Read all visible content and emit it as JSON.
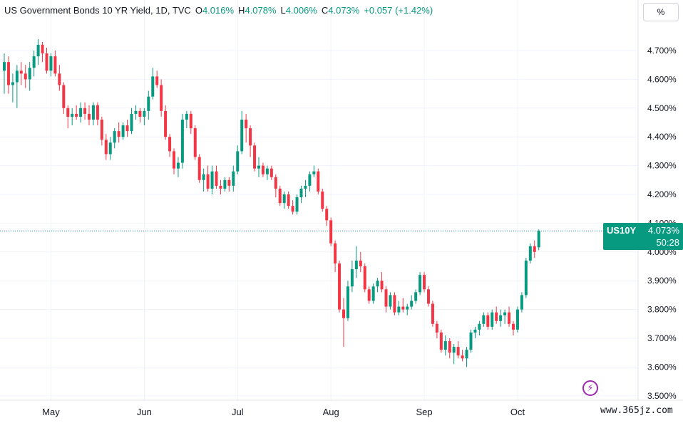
{
  "legend": {
    "title": "US Government Bonds 10 YR Yield, 1D, TVC",
    "open_label": "O",
    "open": "4.016%",
    "high_label": "H",
    "high": "4.078%",
    "low_label": "L",
    "low": "4.006%",
    "close_label": "C",
    "close": "4.073%",
    "change": "+0.057 (+1.42%)"
  },
  "scale_button": "%",
  "price_tag": {
    "symbol": "US10Y",
    "price": "4.073%",
    "countdown": "50:28",
    "value": 4.073
  },
  "watermark": "www.365jz.com",
  "colors": {
    "up": "#089981",
    "down": "#f23645",
    "grid": "#f0f3fa",
    "text": "#131722"
  },
  "icons": {
    "bolt": "lightning-bolt-icon"
  },
  "chart_data": {
    "type": "candlestick",
    "ylim": [
      3.5,
      4.75
    ],
    "y_ticks": [
      "4.700%",
      "4.600%",
      "4.500%",
      "4.400%",
      "4.300%",
      "4.200%",
      "4.100%",
      "4.000%",
      "3.900%",
      "3.800%",
      "3.700%",
      "3.600%",
      "3.500%"
    ],
    "y_tick_values": [
      4.7,
      4.6,
      4.5,
      4.4,
      4.3,
      4.2,
      4.1,
      4.0,
      3.9,
      3.8,
      3.7,
      3.6,
      3.5
    ],
    "x_labels": [
      "May",
      "Jun",
      "Jul",
      "Aug",
      "Sep",
      "Oct"
    ],
    "x_label_index": [
      11,
      33,
      55,
      77,
      99,
      121
    ],
    "grid": true,
    "candles": [
      [
        4.63,
        4.69,
        4.55,
        4.66
      ],
      [
        4.66,
        4.68,
        4.55,
        4.58
      ],
      [
        4.58,
        4.62,
        4.52,
        4.59
      ],
      [
        4.59,
        4.65,
        4.5,
        4.63
      ],
      [
        4.63,
        4.66,
        4.58,
        4.62
      ],
      [
        4.62,
        4.65,
        4.57,
        4.6
      ],
      [
        4.6,
        4.66,
        4.56,
        4.64
      ],
      [
        4.64,
        4.7,
        4.61,
        4.68
      ],
      [
        4.68,
        4.74,
        4.65,
        4.72
      ],
      [
        4.72,
        4.73,
        4.66,
        4.69
      ],
      [
        4.69,
        4.71,
        4.62,
        4.63
      ],
      [
        4.63,
        4.69,
        4.61,
        4.68
      ],
      [
        4.68,
        4.7,
        4.61,
        4.62
      ],
      [
        4.62,
        4.65,
        4.56,
        4.58
      ],
      [
        4.58,
        4.59,
        4.48,
        4.5
      ],
      [
        4.5,
        4.51,
        4.43,
        4.47
      ],
      [
        4.47,
        4.5,
        4.44,
        4.48
      ],
      [
        4.48,
        4.51,
        4.46,
        4.47
      ],
      [
        4.47,
        4.52,
        4.45,
        4.5
      ],
      [
        4.5,
        4.52,
        4.46,
        4.48
      ],
      [
        4.48,
        4.51,
        4.44,
        4.46
      ],
      [
        4.46,
        4.52,
        4.44,
        4.51
      ],
      [
        4.51,
        4.52,
        4.44,
        4.46
      ],
      [
        4.46,
        4.47,
        4.37,
        4.39
      ],
      [
        4.39,
        4.41,
        4.32,
        4.34
      ],
      [
        4.34,
        4.4,
        4.32,
        4.38
      ],
      [
        4.38,
        4.43,
        4.36,
        4.42
      ],
      [
        4.42,
        4.45,
        4.38,
        4.4
      ],
      [
        4.4,
        4.45,
        4.39,
        4.44
      ],
      [
        4.44,
        4.46,
        4.4,
        4.42
      ],
      [
        4.42,
        4.5,
        4.41,
        4.48
      ],
      [
        4.48,
        4.51,
        4.46,
        4.49
      ],
      [
        4.49,
        4.5,
        4.45,
        4.47
      ],
      [
        4.47,
        4.5,
        4.44,
        4.49
      ],
      [
        4.49,
        4.56,
        4.46,
        4.54
      ],
      [
        4.54,
        4.64,
        4.53,
        4.61
      ],
      [
        4.61,
        4.63,
        4.57,
        4.58
      ],
      [
        4.58,
        4.6,
        4.47,
        4.49
      ],
      [
        4.49,
        4.51,
        4.39,
        4.4
      ],
      [
        4.4,
        4.41,
        4.33,
        4.35
      ],
      [
        4.35,
        4.36,
        4.27,
        4.29
      ],
      [
        4.29,
        4.33,
        4.26,
        4.31
      ],
      [
        4.31,
        4.48,
        4.29,
        4.46
      ],
      [
        4.46,
        4.49,
        4.43,
        4.48
      ],
      [
        4.48,
        4.49,
        4.41,
        4.43
      ],
      [
        4.43,
        4.44,
        4.32,
        4.33
      ],
      [
        4.33,
        4.34,
        4.24,
        4.25
      ],
      [
        4.25,
        4.29,
        4.21,
        4.27
      ],
      [
        4.27,
        4.3,
        4.21,
        4.22
      ],
      [
        4.22,
        4.3,
        4.2,
        4.28
      ],
      [
        4.28,
        4.3,
        4.22,
        4.23
      ],
      [
        4.23,
        4.25,
        4.2,
        4.22
      ],
      [
        4.22,
        4.26,
        4.21,
        4.25
      ],
      [
        4.25,
        4.26,
        4.21,
        4.23
      ],
      [
        4.23,
        4.3,
        4.21,
        4.28
      ],
      [
        4.28,
        4.37,
        4.27,
        4.35
      ],
      [
        4.35,
        4.49,
        4.34,
        4.46
      ],
      [
        4.46,
        4.48,
        4.38,
        4.43
      ],
      [
        4.43,
        4.44,
        4.33,
        4.37
      ],
      [
        4.37,
        4.38,
        4.28,
        4.29
      ],
      [
        4.29,
        4.33,
        4.26,
        4.3
      ],
      [
        4.3,
        4.31,
        4.26,
        4.27
      ],
      [
        4.27,
        4.3,
        4.25,
        4.29
      ],
      [
        4.29,
        4.3,
        4.25,
        4.26
      ],
      [
        4.26,
        4.27,
        4.19,
        4.22
      ],
      [
        4.22,
        4.23,
        4.16,
        4.17
      ],
      [
        4.17,
        4.21,
        4.15,
        4.2
      ],
      [
        4.2,
        4.21,
        4.15,
        4.16
      ],
      [
        4.16,
        4.18,
        4.13,
        4.14
      ],
      [
        4.14,
        4.2,
        4.13,
        4.19
      ],
      [
        4.19,
        4.23,
        4.17,
        4.22
      ],
      [
        4.22,
        4.25,
        4.19,
        4.23
      ],
      [
        4.23,
        4.28,
        4.21,
        4.27
      ],
      [
        4.27,
        4.3,
        4.26,
        4.28
      ],
      [
        4.28,
        4.29,
        4.2,
        4.21
      ],
      [
        4.21,
        4.22,
        4.14,
        4.15
      ],
      [
        4.15,
        4.16,
        4.09,
        4.11
      ],
      [
        4.11,
        4.12,
        4.02,
        4.03
      ],
      [
        4.03,
        4.04,
        3.93,
        3.96
      ],
      [
        3.96,
        3.97,
        3.79,
        3.8
      ],
      [
        3.8,
        3.84,
        3.67,
        3.77
      ],
      [
        3.77,
        3.9,
        3.76,
        3.88
      ],
      [
        3.88,
        3.97,
        3.86,
        3.94
      ],
      [
        3.94,
        4.02,
        3.91,
        3.97
      ],
      [
        3.97,
        4.0,
        3.93,
        3.95
      ],
      [
        3.95,
        3.96,
        3.86,
        3.87
      ],
      [
        3.87,
        3.88,
        3.82,
        3.83
      ],
      [
        3.83,
        3.89,
        3.82,
        3.88
      ],
      [
        3.88,
        3.91,
        3.86,
        3.9
      ],
      [
        3.9,
        3.93,
        3.86,
        3.87
      ],
      [
        3.87,
        3.88,
        3.79,
        3.81
      ],
      [
        3.81,
        3.86,
        3.8,
        3.85
      ],
      [
        3.85,
        3.86,
        3.78,
        3.79
      ],
      [
        3.79,
        3.83,
        3.78,
        3.81
      ],
      [
        3.81,
        3.84,
        3.79,
        3.8
      ],
      [
        3.8,
        3.82,
        3.78,
        3.81
      ],
      [
        3.81,
        3.85,
        3.8,
        3.83
      ],
      [
        3.83,
        3.87,
        3.82,
        3.86
      ],
      [
        3.86,
        3.93,
        3.85,
        3.92
      ],
      [
        3.92,
        3.93,
        3.86,
        3.87
      ],
      [
        3.87,
        3.88,
        3.81,
        3.82
      ],
      [
        3.82,
        3.83,
        3.74,
        3.75
      ],
      [
        3.75,
        3.76,
        3.7,
        3.72
      ],
      [
        3.72,
        3.73,
        3.65,
        3.66
      ],
      [
        3.66,
        3.71,
        3.64,
        3.69
      ],
      [
        3.69,
        3.7,
        3.63,
        3.65
      ],
      [
        3.65,
        3.68,
        3.61,
        3.67
      ],
      [
        3.67,
        3.69,
        3.63,
        3.64
      ],
      [
        3.64,
        3.66,
        3.62,
        3.63
      ],
      [
        3.63,
        3.67,
        3.6,
        3.66
      ],
      [
        3.66,
        3.73,
        3.65,
        3.72
      ],
      [
        3.72,
        3.74,
        3.7,
        3.73
      ],
      [
        3.73,
        3.76,
        3.71,
        3.75
      ],
      [
        3.75,
        3.79,
        3.74,
        3.78
      ],
      [
        3.78,
        3.79,
        3.73,
        3.74
      ],
      [
        3.74,
        3.8,
        3.73,
        3.79
      ],
      [
        3.79,
        3.81,
        3.75,
        3.76
      ],
      [
        3.76,
        3.8,
        3.74,
        3.78
      ],
      [
        3.78,
        3.8,
        3.75,
        3.79
      ],
      [
        3.79,
        3.81,
        3.74,
        3.75
      ],
      [
        3.75,
        3.76,
        3.71,
        3.73
      ],
      [
        3.73,
        3.81,
        3.72,
        3.8
      ],
      [
        3.8,
        3.86,
        3.79,
        3.85
      ],
      [
        3.85,
        3.98,
        3.84,
        3.97
      ],
      [
        3.97,
        4.03,
        3.96,
        4.02
      ],
      [
        4.02,
        4.04,
        3.98,
        4.0
      ],
      [
        4.016,
        4.078,
        4.006,
        4.073
      ]
    ]
  }
}
